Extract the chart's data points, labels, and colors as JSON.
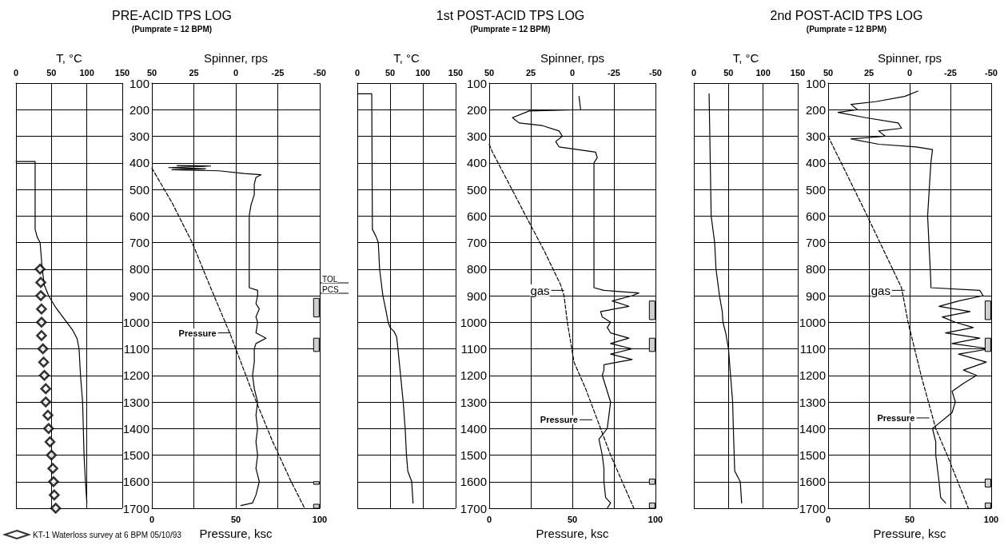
{
  "chart_data": [
    {
      "type": "line",
      "xlabel": "T, °C",
      "xlim": [
        0,
        150
      ],
      "xticks": [
        0,
        50,
        100,
        150
      ],
      "ylim": [
        1700,
        100
      ],
      "yticks": [
        100,
        200,
        300,
        400,
        500,
        600,
        700,
        800,
        900,
        1000,
        1100,
        1200,
        1300,
        1400,
        1500,
        1600,
        1700
      ],
      "grid": true,
      "tick_labels": "x",
      "legend": "bottom",
      "series": [
        {
          "color": "#000000",
          "x": [
            0,
            27,
            27,
            30,
            34,
            37,
            40,
            46,
            55,
            66,
            80,
            86,
            89,
            91,
            94,
            96,
            98,
            100
          ],
          "values": [
            395,
            395,
            650,
            680,
            700,
            800,
            860,
            900,
            940,
            980,
            1030,
            1060,
            1100,
            1200,
            1300,
            1500,
            1600,
            1680
          ]
        },
        {
          "type": "scatter",
          "name": "KT-1 Waterloss survey at 6 BPM 05/10/93",
          "marker": "diamond",
          "color": "#000000",
          "x": [
            34,
            35,
            35,
            36,
            36,
            36,
            38,
            39,
            40,
            42,
            42,
            45,
            46,
            48,
            50,
            52,
            53,
            54,
            56
          ],
          "values": [
            800,
            850,
            900,
            950,
            1000,
            1050,
            1100,
            1150,
            1200,
            1250,
            1300,
            1350,
            1400,
            1450,
            1500,
            1550,
            1600,
            1650,
            1700
          ]
        }
      ]
    },
    {
      "type": "line",
      "title": "PRE-ACID TPS LOG",
      "subtitle": "(Pumprate = 12 BPM)",
      "xlabel": "Pressure, ksc",
      "xlim": [
        0,
        100
      ],
      "xticks": [
        0,
        50,
        100
      ],
      "x2label": "Spinner, rps",
      "x2lim": [
        50,
        -50
      ],
      "x2ticks": [
        50,
        25,
        0,
        -25,
        -50
      ],
      "ylim": [
        1700,
        100
      ],
      "yticks": [
        100,
        200,
        300,
        400,
        500,
        600,
        700,
        800,
        900,
        1000,
        1100,
        1200,
        1300,
        1400,
        1500,
        1600,
        1700
      ],
      "grid": true,
      "series": [
        {
          "axis": "x2",
          "color": "#000000",
          "x": [
            35,
            15,
            40,
            18,
            38,
            10,
            -5,
            -15,
            -12,
            -11,
            -11,
            -9,
            -8,
            -8,
            -8,
            -8,
            -8,
            -8,
            -13,
            -13,
            -12,
            -14,
            -12,
            -13,
            -12,
            -18,
            -12,
            -11,
            -11,
            -10,
            -11,
            -13,
            -12,
            -13,
            -12,
            -13,
            -12,
            -14,
            -12,
            -10,
            -3
          ],
          "values": [
            410,
            412,
            418,
            422,
            426,
            430,
            440,
            445,
            455,
            480,
            520,
            560,
            600,
            650,
            700,
            760,
            820,
            870,
            880,
            900,
            930,
            950,
            980,
            1000,
            1040,
            1060,
            1080,
            1100,
            1150,
            1200,
            1250,
            1300,
            1350,
            1400,
            1450,
            1500,
            1550,
            1600,
            1650,
            1680,
            1690
          ]
        },
        {
          "color": "#000000",
          "line_style": "dashed",
          "x": [
            0,
            12,
            24,
            35,
            47,
            59,
            72,
            83,
            91
          ],
          "values": [
            420,
            550,
            700,
            870,
            1050,
            1250,
            1450,
            1600,
            1700
          ]
        },
        {
          "type": "bar",
          "color": "#d0d0d0",
          "x": [
            98
          ],
          "base": [
            910
          ],
          "values": [
            70
          ]
        },
        {
          "type": "bar",
          "color": "#d0d0d0",
          "x": [
            98
          ],
          "base": [
            1060
          ],
          "values": [
            50
          ]
        },
        {
          "type": "bar",
          "color": "#d0d0d0",
          "x": [
            98
          ],
          "base": [
            1600
          ],
          "values": [
            10
          ]
        },
        {
          "type": "bar",
          "color": "#d0d0d0",
          "x": [
            98
          ],
          "base": [
            1685
          ],
          "values": [
            15
          ]
        }
      ],
      "annotations": [
        {
          "text": "Pressure",
          "x": 47,
          "y": 1040
        },
        "TOL",
        "PCS"
      ]
    },
    {
      "type": "line",
      "xlabel": "T, °C",
      "xlim": [
        0,
        150
      ],
      "xticks": [
        0,
        50,
        100,
        150
      ],
      "ylim": [
        1700,
        100
      ],
      "yticks": [
        100,
        200,
        300,
        400,
        500,
        600,
        700,
        800,
        900,
        1000,
        1100,
        1200,
        1300,
        1400,
        1500,
        1600,
        1700
      ],
      "grid": true,
      "tick_labels": "x",
      "series": [
        {
          "color": "#000000",
          "x": [
            0,
            22,
            23,
            29,
            32,
            34,
            39,
            44,
            47,
            50,
            56,
            60,
            62,
            66,
            70,
            73,
            75,
            77,
            83,
            85
          ],
          "values": [
            140,
            140,
            650,
            680,
            700,
            800,
            900,
            960,
            1000,
            1020,
            1035,
            1055,
            1100,
            1200,
            1300,
            1400,
            1500,
            1560,
            1600,
            1680
          ]
        }
      ]
    },
    {
      "type": "line",
      "title": "1st POST-ACID TPS LOG",
      "subtitle": "(Pumprate = 12 BPM)",
      "xlabel": "Pressure, ksc",
      "xlim": [
        0,
        100
      ],
      "xticks": [
        0,
        50,
        100
      ],
      "x2label": "Spinner, rps",
      "x2lim": [
        50,
        -50
      ],
      "x2ticks": [
        50,
        25,
        0,
        -25,
        -50
      ],
      "ylim": [
        1700,
        100
      ],
      "yticks": [
        100,
        200,
        300,
        400,
        500,
        600,
        700,
        800,
        900,
        1000,
        1100,
        1200,
        1300,
        1400,
        1500,
        1600,
        1700
      ],
      "grid": true,
      "series": [
        {
          "axis": "x2",
          "color": "#000000",
          "x": [
            -4,
            -5,
            26,
            36,
            32,
            18,
            8,
            6,
            10,
            8,
            -3,
            -14,
            -15,
            -13,
            -13,
            -13,
            -19,
            -40,
            -36,
            -24,
            -34,
            -17,
            -18,
            -23,
            -21,
            -23,
            -34,
            -23,
            -36,
            -23,
            -36,
            -19,
            -19,
            -18,
            -23,
            -22,
            -21,
            -16,
            -18,
            -19,
            -19,
            -20,
            -23,
            -21
          ],
          "values": [
            150,
            200,
            205,
            230,
            250,
            260,
            280,
            300,
            320,
            340,
            350,
            360,
            380,
            400,
            600,
            870,
            880,
            890,
            900,
            920,
            940,
            960,
            980,
            1000,
            1020,
            1040,
            1060,
            1080,
            1100,
            1120,
            1140,
            1160,
            1180,
            1200,
            1300,
            1350,
            1400,
            1440,
            1500,
            1550,
            1600,
            1660,
            1680,
            1700
          ]
        },
        {
          "color": "#000000",
          "line_style": "dashed",
          "x": [
            0,
            2,
            12,
            22,
            33,
            43,
            45,
            47,
            51,
            58,
            67,
            73,
            80,
            87
          ],
          "values": [
            330,
            360,
            480,
            600,
            730,
            860,
            900,
            1000,
            1150,
            1250,
            1400,
            1500,
            1600,
            1700
          ]
        },
        {
          "type": "bar",
          "color": "#d0d0d0",
          "x": [
            98
          ],
          "base": [
            920
          ],
          "values": [
            70
          ]
        },
        {
          "type": "bar",
          "color": "#d0d0d0",
          "x": [
            98
          ],
          "base": [
            1060
          ],
          "values": [
            50
          ]
        },
        {
          "type": "bar",
          "color": "#d0d0d0",
          "x": [
            98
          ],
          "base": [
            1590
          ],
          "values": [
            20
          ]
        },
        {
          "type": "bar",
          "color": "#d0d0d0",
          "x": [
            98
          ],
          "base": [
            1680
          ],
          "values": [
            20
          ]
        }
      ],
      "annotations": [
        {
          "text": "gas",
          "x": 45,
          "y": 880
        },
        {
          "text": "Pressure",
          "x": 62,
          "y": 1367
        }
      ]
    },
    {
      "type": "line",
      "xlabel": "T, °C",
      "xlim": [
        0,
        150
      ],
      "xticks": [
        0,
        50,
        100,
        150
      ],
      "ylim": [
        1700,
        100
      ],
      "yticks": [
        100,
        200,
        300,
        400,
        500,
        600,
        700,
        800,
        900,
        1000,
        1100,
        1200,
        1300,
        1400,
        1500,
        1600,
        1700
      ],
      "grid": true,
      "tick_labels": "x",
      "series": [
        {
          "color": "#000000",
          "x": [
            22,
            25,
            30,
            32,
            37,
            41,
            42,
            46,
            50,
            53,
            56,
            57,
            59,
            67,
            69
          ],
          "values": [
            140,
            600,
            700,
            800,
            900,
            960,
            1000,
            1040,
            1100,
            1200,
            1300,
            1400,
            1560,
            1600,
            1680
          ]
        }
      ]
    },
    {
      "type": "line",
      "title": "2nd POST-ACID TPS LOG",
      "subtitle": "(Pumprate = 12 BPM)",
      "xlabel": "Pressure, ksc",
      "xlim": [
        0,
        100
      ],
      "xticks": [
        0,
        50,
        100
      ],
      "x2label": "Spinner, rps",
      "x2lim": [
        50,
        -50
      ],
      "x2ticks": [
        50,
        25,
        0,
        -25,
        -50
      ],
      "ylim": [
        1700,
        100
      ],
      "yticks": [
        100,
        200,
        300,
        400,
        500,
        600,
        700,
        800,
        900,
        1000,
        1100,
        1200,
        1300,
        1400,
        1500,
        1600,
        1700
      ],
      "grid": true,
      "series": [
        {
          "axis": "x2",
          "color": "#000000",
          "x": [
            -5,
            3,
            21,
            36,
            32,
            44,
            27,
            7,
            5,
            19,
            15,
            36,
            19,
            -4,
            -14,
            -13,
            -11,
            -13,
            -13,
            -43,
            -45,
            -30,
            -18,
            -37,
            -20,
            -28,
            -39,
            -22,
            -43,
            -26,
            -49,
            -30,
            -47,
            -33,
            -41,
            -33,
            -26,
            -28,
            -26,
            -18,
            -14,
            -16,
            -16,
            -18,
            -19,
            -22
          ],
          "values": [
            130,
            150,
            170,
            180,
            200,
            210,
            230,
            250,
            270,
            280,
            300,
            310,
            330,
            340,
            350,
            400,
            600,
            850,
            870,
            880,
            900,
            920,
            940,
            960,
            980,
            1000,
            1020,
            1040,
            1060,
            1080,
            1100,
            1120,
            1150,
            1180,
            1200,
            1230,
            1260,
            1300,
            1340,
            1380,
            1400,
            1450,
            1500,
            1600,
            1660,
            1680
          ]
        },
        {
          "color": "#000000",
          "line_style": "dashed",
          "x": [
            0,
            8,
            24,
            45,
            49,
            53,
            57,
            66,
            73,
            86
          ],
          "values": [
            300,
            400,
            600,
            870,
            1000,
            1100,
            1200,
            1400,
            1500,
            1700
          ]
        },
        {
          "type": "bar",
          "color": "#d0d0d0",
          "x": [
            98
          ],
          "base": [
            920
          ],
          "values": [
            70
          ]
        },
        {
          "type": "bar",
          "color": "#d0d0d0",
          "x": [
            98
          ],
          "base": [
            1060
          ],
          "values": [
            50
          ]
        },
        {
          "type": "bar",
          "color": "#d0d0d0",
          "x": [
            98
          ],
          "base": [
            1590
          ],
          "values": [
            30
          ]
        },
        {
          "type": "bar",
          "color": "#d0d0d0",
          "x": [
            98
          ],
          "base": [
            1680
          ],
          "values": [
            20
          ]
        }
      ],
      "annotations": [
        {
          "text": "gas",
          "x": 47,
          "y": 880
        },
        {
          "text": "Pressure",
          "x": 62,
          "y": 1360
        }
      ]
    }
  ]
}
